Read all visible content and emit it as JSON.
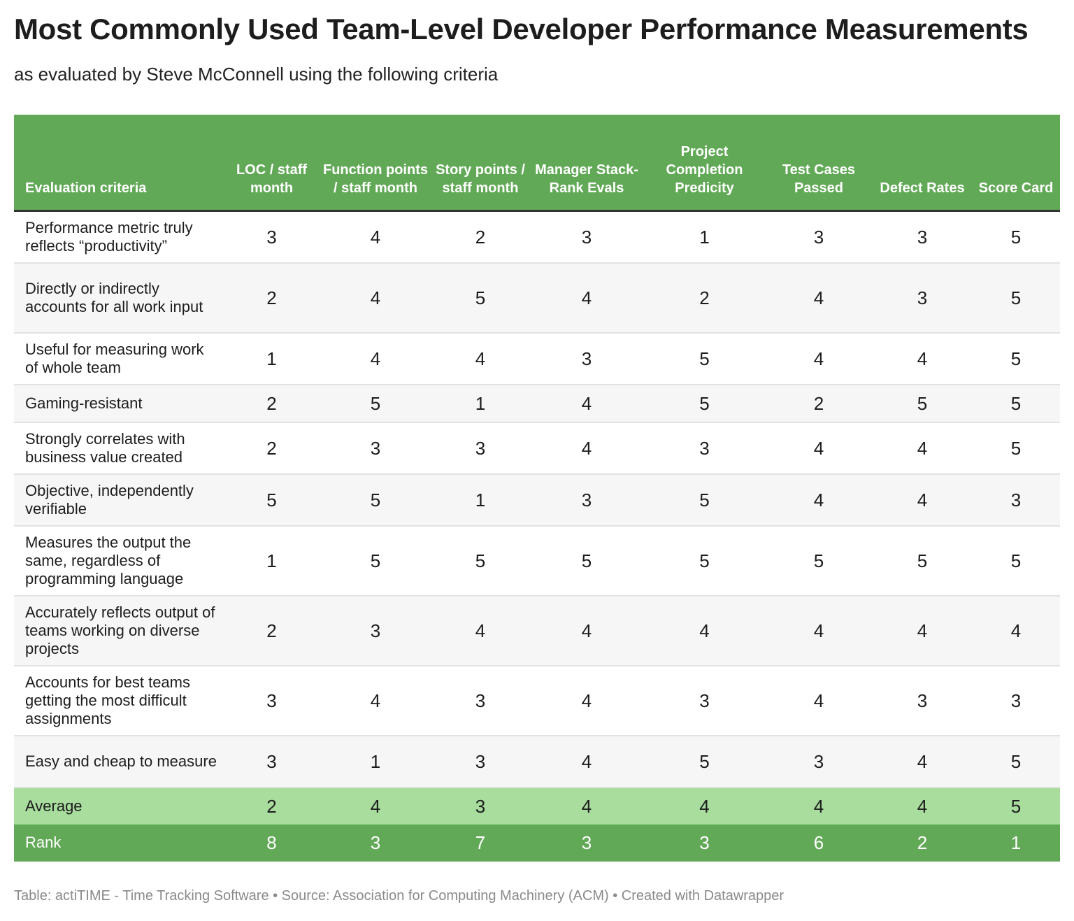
{
  "title": "Most Commonly Used Team-Level Developer Performance Measurements",
  "subtitle": "as evaluated by Steve McConnell using the following criteria",
  "footer": "Table: actiTIME - Time Tracking Software • Source: Association for Computing Machinery (ACM) • Created with Datawrapper",
  "colors": {
    "header_green": "#62a957",
    "average_green": "#a8dd9e",
    "rank_green": "#62a957",
    "row_alt": "#f6f6f6"
  },
  "chart_data": {
    "type": "table",
    "columns": [
      "Evaluation criteria",
      "LOC / staff month",
      "Function points / staff month",
      "Story points / staff month",
      "Manager Stack-Rank Evals",
      "Project Completion Predicity",
      "Test Cases Passed",
      "Defect Rates",
      "Score Card"
    ],
    "rows": [
      {
        "label": "Performance metric truly reflects “productivity”",
        "values": [
          3,
          4,
          2,
          3,
          1,
          3,
          3,
          5
        ]
      },
      {
        "label": "Directly or indirectly accounts for all work input",
        "values": [
          2,
          4,
          5,
          4,
          2,
          4,
          3,
          5
        ]
      },
      {
        "label": "Useful for measuring work of whole team",
        "values": [
          1,
          4,
          4,
          3,
          5,
          4,
          4,
          5
        ]
      },
      {
        "label": "Gaming-resistant",
        "values": [
          2,
          5,
          1,
          4,
          5,
          2,
          5,
          5
        ]
      },
      {
        "label": "Strongly correlates with business value created",
        "values": [
          2,
          3,
          3,
          4,
          3,
          4,
          4,
          5
        ]
      },
      {
        "label": "Objective, independently verifiable",
        "values": [
          5,
          5,
          1,
          3,
          5,
          4,
          4,
          3
        ]
      },
      {
        "label": "Measures the output the same, regardless of programming language",
        "values": [
          1,
          5,
          5,
          5,
          5,
          5,
          5,
          5
        ]
      },
      {
        "label": "Accurately reflects output of teams working on diverse projects",
        "values": [
          2,
          3,
          4,
          4,
          4,
          4,
          4,
          4
        ]
      },
      {
        "label": "Accounts for best teams getting the most difficult assignments",
        "values": [
          3,
          4,
          3,
          4,
          3,
          4,
          3,
          3
        ]
      },
      {
        "label": "Easy and cheap to measure",
        "values": [
          3,
          1,
          3,
          4,
          5,
          3,
          4,
          5
        ]
      }
    ],
    "summary_rows": [
      {
        "label": "Average",
        "values": [
          2,
          4,
          3,
          4,
          4,
          4,
          4,
          5
        ]
      },
      {
        "label": "Rank",
        "values": [
          8,
          3,
          7,
          3,
          3,
          6,
          2,
          1
        ]
      }
    ]
  }
}
